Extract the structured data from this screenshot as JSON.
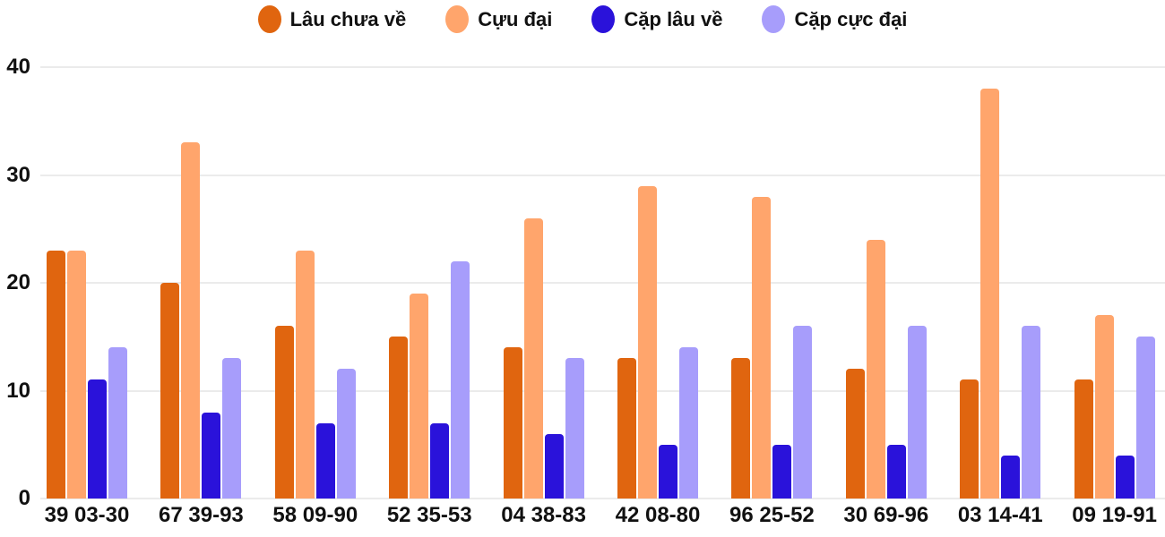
{
  "chart_data": {
    "type": "bar",
    "title": "",
    "xlabel": "",
    "ylabel": "",
    "legend_position": "top",
    "grid": true,
    "ylim": [
      0,
      40
    ],
    "yticks": [
      0,
      10,
      20,
      30,
      40
    ],
    "categories": [
      "39 03-30",
      "67 39-93",
      "58 09-90",
      "52 35-53",
      "04 38-83",
      "42 08-80",
      "96 25-52",
      "30 69-96",
      "03 14-41",
      "09 19-91"
    ],
    "series": [
      {
        "name": "Lâu chưa về",
        "color": "#e0650f",
        "values": [
          23,
          20,
          16,
          15,
          14,
          13,
          13,
          12,
          11,
          11
        ]
      },
      {
        "name": "Cựu đại",
        "color": "#ffa56c",
        "values": [
          23,
          33,
          23,
          19,
          26,
          29,
          28,
          24,
          38,
          17
        ]
      },
      {
        "name": "Cặp lâu về",
        "color": "#2a12da",
        "values": [
          11,
          8,
          7,
          7,
          6,
          5,
          5,
          5,
          4,
          4
        ]
      },
      {
        "name": "Cặp cực đại",
        "color": "#a79dfb",
        "values": [
          14,
          13,
          12,
          22,
          13,
          14,
          16,
          16,
          16,
          15
        ]
      }
    ],
    "colors": {
      "text": "#111111",
      "gridline": "#ebebeb",
      "background": "#ffffff"
    }
  }
}
